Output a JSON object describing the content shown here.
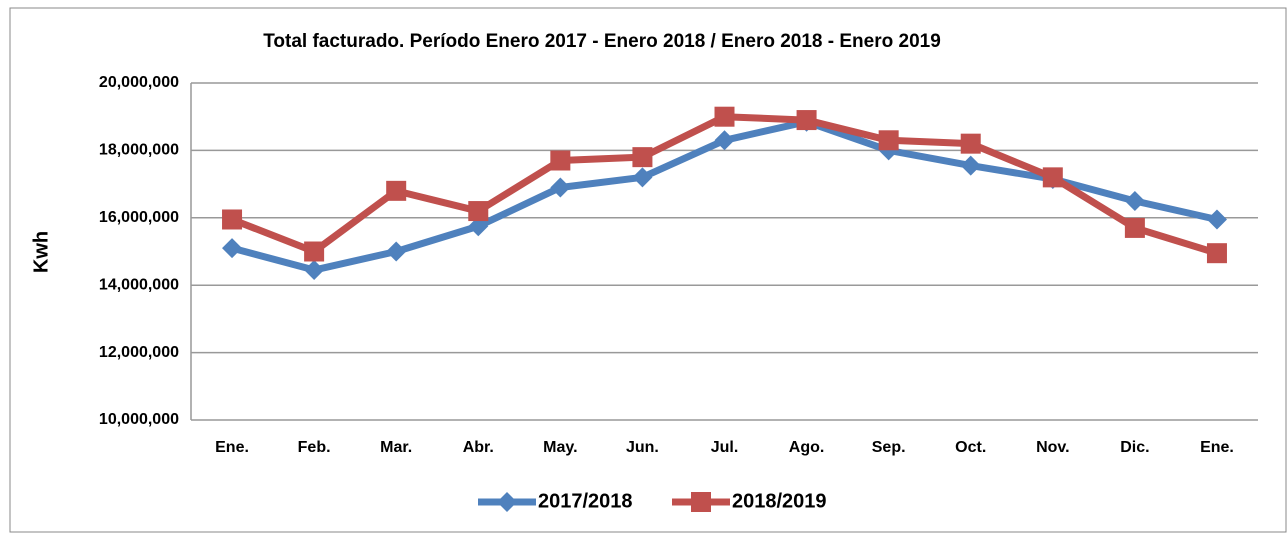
{
  "chart_data": {
    "type": "line",
    "title": "Total facturado. Período Enero 2017 - Enero 2018 / Enero 2018 - Enero 2019",
    "y_label": "Kwh",
    "categories": [
      "Ene.",
      "Feb.",
      "Mar.",
      "Abr.",
      "May.",
      "Jun.",
      "Jul.",
      "Ago.",
      "Sep.",
      "Oct.",
      "Nov.",
      "Dic.",
      "Ene."
    ],
    "series": [
      {
        "name": "2017/2018",
        "color": "#4f81bd",
        "marker": "diamond",
        "values": [
          15100000,
          14450000,
          15000000,
          15750000,
          16900000,
          17200000,
          18300000,
          18850000,
          18000000,
          17550000,
          17150000,
          16500000,
          15950000
        ]
      },
      {
        "name": "2018/2019",
        "color": "#c0504d",
        "marker": "square",
        "values": [
          15950000,
          15000000,
          16800000,
          16200000,
          17700000,
          17800000,
          19000000,
          18900000,
          18300000,
          18200000,
          17200000,
          15700000,
          14950000
        ]
      }
    ],
    "ylim": [
      10000000,
      20000000
    ],
    "yticks": [
      {
        "value": 10000000,
        "label": "10,000,000"
      },
      {
        "value": 12000000,
        "label": "12,000,000"
      },
      {
        "value": 14000000,
        "label": "14,000,000"
      },
      {
        "value": 16000000,
        "label": "16,000,000"
      },
      {
        "value": 18000000,
        "label": "18,000,000"
      },
      {
        "value": 20000000,
        "label": "20,000,000"
      }
    ],
    "grid": true,
    "legend": "bottom"
  }
}
